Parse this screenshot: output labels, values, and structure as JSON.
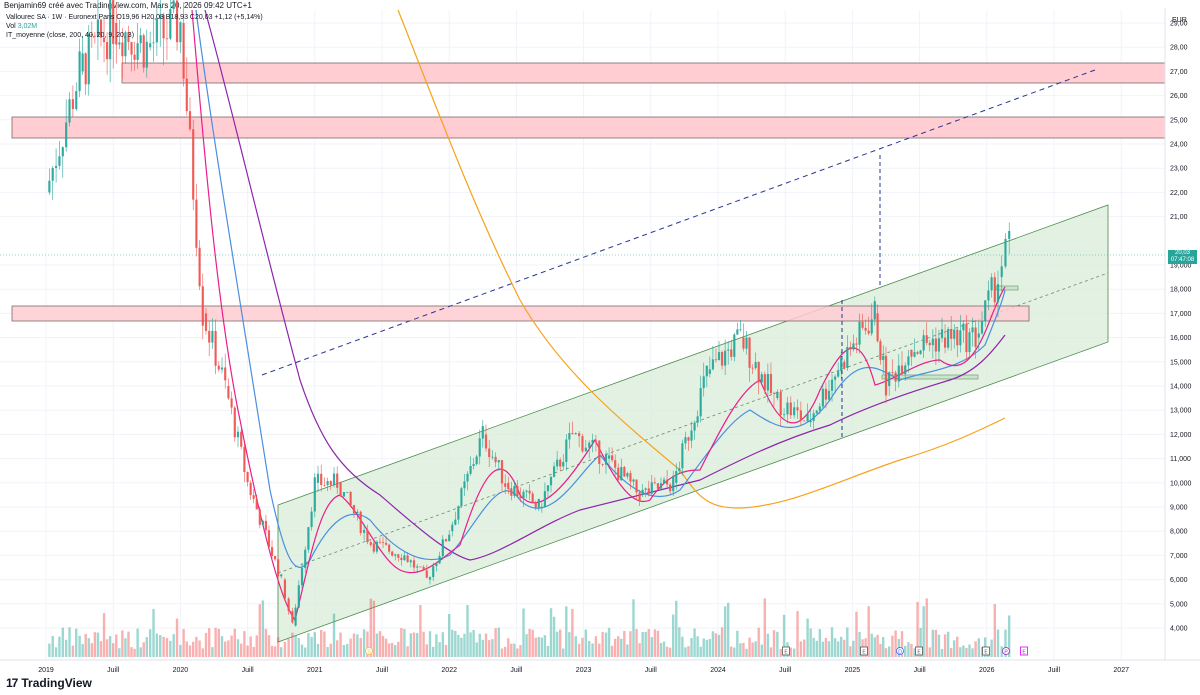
{
  "header": {
    "credit": "Benjamin69 créé avec TradingView.com, Mars 20, 2026 09:42 UTC+1"
  },
  "legend": {
    "symbol_line": "Vallourec SA · 1W · Euronext Paris  O19,96  H20,03  B18,93  C20,03  +1,12 (+5,14%)",
    "vol_label": "Vol",
    "vol_value": "3,02M",
    "indicator_line": "IT_moyenne (close, 200, 40, 20, 9, 20, 3)"
  },
  "price_axis": {
    "currency": "EUR",
    "ticks": [
      "29,00",
      "28,00",
      "27,00",
      "26,00",
      "25,00",
      "24,00",
      "23,00",
      "22,00",
      "21,00",
      "19,000",
      "18,000",
      "17,000",
      "16,000",
      "15,000",
      "14,000",
      "13,000",
      "12,000",
      "11,000",
      "10,000",
      "9,000",
      "8,000",
      "7,000",
      "6,000",
      "5,000",
      "4,000"
    ],
    "last_price": "20,03",
    "countdown": "07:47:08"
  },
  "time_axis": {
    "labels": [
      "2019",
      "Juill",
      "2020",
      "Juill",
      "2021",
      "Juill",
      "2022",
      "Juill",
      "2023",
      "Juill",
      "2024",
      "Juill",
      "2025",
      "Juill",
      "2026",
      "Juill",
      "2027"
    ]
  },
  "event_markers": [
    "S",
    "E",
    "E",
    "D",
    "E",
    "E",
    "P",
    "E"
  ],
  "footer": {
    "brand": "TradingView",
    "logo_mark": "17"
  },
  "colors": {
    "up": "#26a69a",
    "down": "#ef5350",
    "zone_fill": "#ffcdd2",
    "channel_fill": "#d8ecd8",
    "ma200": "#f7a21b",
    "ma_purple": "#8e24aa",
    "ma_blue": "#4a8fe0",
    "ma_pink": "#e91e8c",
    "trend_dash": "#283593"
  },
  "chart_data": {
    "type": "candlestick",
    "title": "Vallourec SA · 1W · Euronext Paris",
    "xlabel": "",
    "ylabel": "EUR",
    "ylim": [
      3.5,
      29.5
    ],
    "x_range": [
      "2018-10",
      "2027-04"
    ],
    "grid": true,
    "last_close": 20.03,
    "approx_weekly_path": {
      "dates": [
        "2019-01",
        "2019-04",
        "2019-07",
        "2019-10",
        "2020-01",
        "2020-03",
        "2020-05",
        "2020-07",
        "2020-10",
        "2020-11",
        "2021-01",
        "2021-03",
        "2021-06",
        "2021-09",
        "2021-11",
        "2022-01",
        "2022-04",
        "2022-06",
        "2022-09",
        "2022-12",
        "2023-03",
        "2023-06",
        "2023-09",
        "2023-12",
        "2024-03",
        "2024-06",
        "2024-09",
        "2024-12",
        "2025-03",
        "2025-04",
        "2025-06",
        "2025-09",
        "2025-12",
        "2026-02",
        "2026-03"
      ],
      "close": [
        22,
        27,
        29,
        28,
        29,
        17,
        14,
        10,
        6,
        4.1,
        10,
        10,
        7.5,
        7,
        6,
        8,
        12,
        10,
        9,
        12,
        11,
        9.5,
        10,
        14.5,
        16,
        13.5,
        12.5,
        15,
        17,
        14,
        15.5,
        16,
        16,
        18.5,
        20.03
      ]
    },
    "horizontal_zones": [
      {
        "name": "resistance-zone-top",
        "from": 27.1,
        "to": 27.9
      },
      {
        "name": "resistance-zone-2",
        "from": 24.8,
        "to": 25.6
      },
      {
        "name": "support-zone",
        "from": 17.2,
        "to": 17.8
      }
    ],
    "channel": {
      "upper": [
        [
          "2020-12",
          9.5
        ],
        [
          "2026-12",
          21.9
        ]
      ],
      "lower": [
        [
          "2020-12",
          3.9
        ],
        [
          "2026-12",
          16.3
        ]
      ],
      "mid_dashed": [
        [
          "2020-12",
          6.7
        ],
        [
          "2026-12",
          19.1
        ]
      ]
    },
    "trendline_dashed": [
      [
        "2020-09",
        15.0
      ],
      [
        "2026-11",
        27.6
      ]
    ],
    "moving_averages": [
      "MA200 (orange)",
      "MA40 (purple)",
      "MA20 (blue)",
      "MA9 (pink)"
    ],
    "volume_series_visible": true
  }
}
